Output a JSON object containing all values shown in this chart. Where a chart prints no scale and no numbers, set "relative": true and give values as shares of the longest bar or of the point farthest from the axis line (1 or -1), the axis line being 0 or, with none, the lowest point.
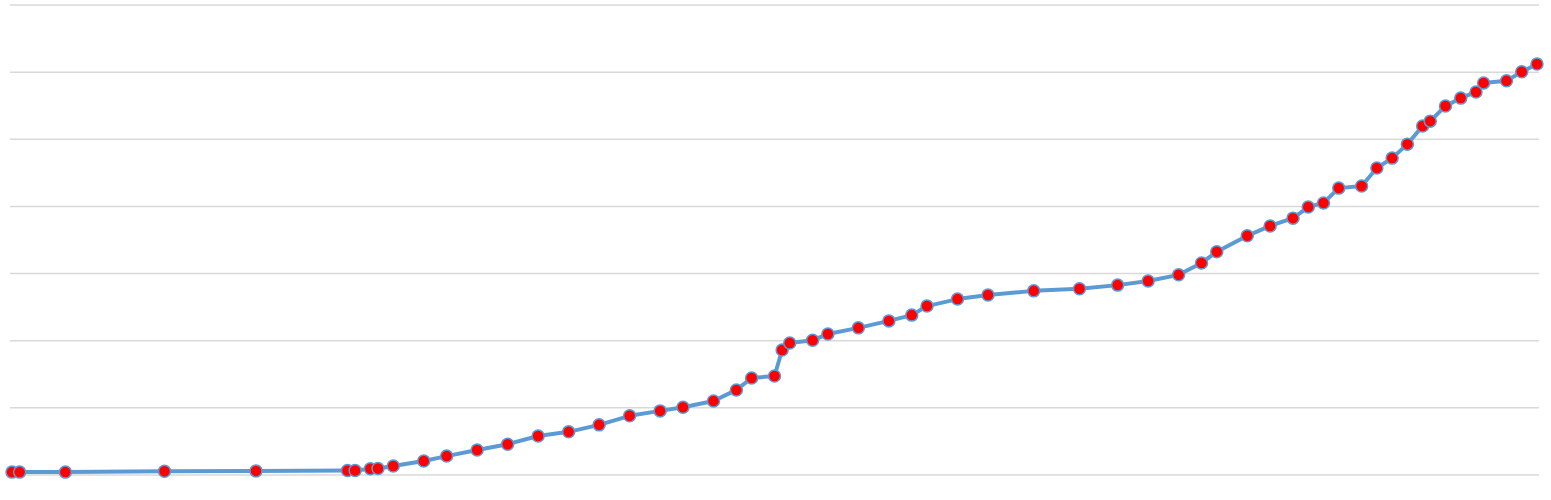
{
  "chart_data": {
    "type": "line",
    "relative": true,
    "grid": "y",
    "marker": "circle",
    "line_style": "solid",
    "categories": [
      null,
      null,
      null,
      null,
      null,
      null,
      null,
      null,
      null,
      null,
      null,
      null,
      null,
      null,
      null,
      null,
      null,
      null,
      null,
      null,
      null,
      null,
      null,
      null,
      null,
      null,
      null,
      null,
      null,
      null,
      null,
      null,
      null,
      null,
      null,
      null,
      null,
      null,
      null,
      null,
      null,
      null,
      null,
      null,
      null,
      null,
      null,
      null,
      null,
      null,
      null,
      null,
      null,
      null,
      null,
      null,
      null,
      null,
      null,
      null,
      null,
      null,
      null,
      null,
      null,
      null,
      null,
      null,
      null,
      null,
      null,
      null,
      null,
      null,
      null,
      null,
      null,
      null,
      null,
      null,
      null,
      null,
      null,
      null,
      null,
      null,
      null,
      null,
      null,
      null,
      null,
      null,
      null,
      null,
      null,
      null,
      null,
      null,
      null,
      null,
      null,
      null,
      null,
      null,
      null,
      null,
      null,
      null,
      null,
      null,
      null,
      null,
      null,
      null,
      null,
      null,
      null,
      null,
      null,
      null,
      null,
      null,
      null,
      null,
      null,
      null,
      null,
      null,
      null,
      null,
      null,
      null,
      null,
      null,
      null,
      null,
      null,
      null,
      null,
      null,
      null,
      null,
      null,
      null,
      null,
      null,
      null,
      null,
      null,
      null,
      null,
      null,
      null,
      null,
      null,
      null,
      null,
      null,
      null,
      null,
      null,
      null,
      null,
      null,
      null,
      null,
      null,
      null,
      null,
      null,
      null,
      null,
      null,
      null,
      null,
      null,
      null,
      null,
      null,
      null,
      null,
      null,
      null,
      null,
      null,
      null,
      null,
      null,
      null,
      null,
      null,
      null,
      null,
      null,
      null,
      null,
      null,
      null,
      null,
      null,
      null
    ],
    "series": [
      {
        "color": "#5b9bd5",
        "values": [
          0.007,
          0.007,
          null,
          null,
          null,
          null,
          null,
          0.007,
          null,
          null,
          null,
          null,
          null,
          null,
          null,
          null,
          null,
          null,
          null,
          null,
          0.009,
          null,
          null,
          null,
          null,
          null,
          null,
          null,
          null,
          null,
          null,
          null,
          0.01,
          null,
          null,
          null,
          null,
          null,
          null,
          null,
          null,
          null,
          null,
          null,
          0.011,
          0.011,
          null,
          0.015,
          0.016,
          null,
          0.022,
          null,
          null,
          null,
          0.034,
          null,
          null,
          0.046,
          null,
          null,
          null,
          0.061,
          null,
          null,
          null,
          0.075,
          null,
          null,
          null,
          0.095,
          null,
          null,
          null,
          0.105,
          null,
          null,
          null,
          0.122,
          null,
          null,
          null,
          0.144,
          null,
          null,
          null,
          0.156,
          null,
          null,
          0.165,
          null,
          null,
          null,
          0.18,
          null,
          null,
          0.207,
          null,
          0.236,
          null,
          null,
          0.241,
          0.304,
          0.321,
          null,
          null,
          0.328,
          null,
          0.343,
          null,
          null,
          null,
          0.358,
          null,
          null,
          null,
          0.375,
          null,
          null,
          0.389,
          null,
          0.411,
          null,
          null,
          null,
          0.428,
          null,
          null,
          null,
          0.438,
          null,
          null,
          null,
          null,
          null,
          0.448,
          null,
          null,
          null,
          null,
          null,
          0.453,
          null,
          null,
          null,
          null,
          0.462,
          null,
          null,
          null,
          0.472,
          null,
          null,
          null,
          0.487,
          null,
          null,
          0.516,
          null,
          0.543,
          null,
          null,
          null,
          0.582,
          null,
          null,
          0.606,
          null,
          null,
          0.625,
          null,
          0.652,
          null,
          0.662,
          null,
          0.698,
          null,
          null,
          0.703,
          null,
          0.747,
          null,
          0.771,
          null,
          0.805,
          null,
          0.849,
          0.861,
          null,
          0.898,
          null,
          0.917,
          null,
          0.932,
          0.954,
          null,
          null,
          0.959,
          null,
          0.981,
          null,
          1
        ]
      }
    ]
  }
}
